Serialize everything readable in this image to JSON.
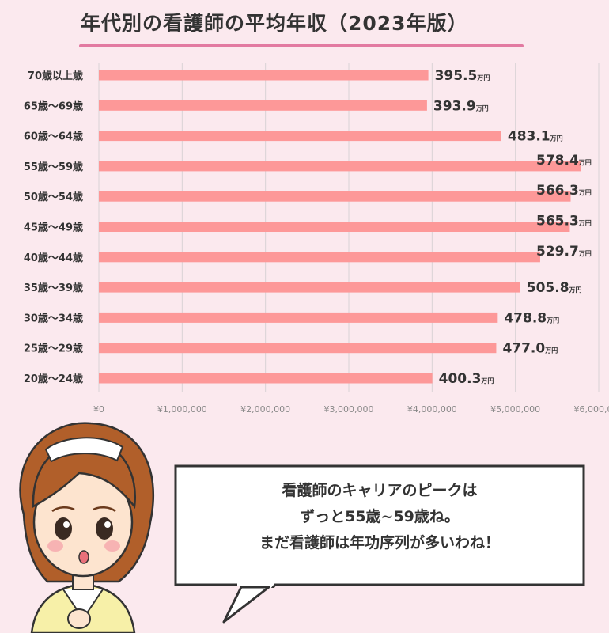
{
  "title": "年代別の看護師の平均年収（2023年版）",
  "chart_data": {
    "type": "bar",
    "orientation": "horizontal",
    "title": "年代別の看護師の平均年収（2023年版）",
    "categories": [
      "70歳以上歳",
      "65歳～69歳",
      "60歳～64歳",
      "55歳～59歳",
      "50歳～54歳",
      "45歳～49歳",
      "40歳～44歳",
      "35歳～39歳",
      "30歳～34歳",
      "25歳～29歳",
      "20歳～24歳"
    ],
    "values": [
      395.5,
      393.9,
      483.1,
      578.4,
      566.3,
      565.3,
      529.7,
      505.8,
      478.8,
      477.0,
      400.3
    ],
    "value_labels": [
      "395.5",
      "393.9",
      "483.1",
      "578.4",
      "566.3",
      "565.3",
      "529.7",
      "505.8",
      "478.8",
      "477.0",
      "400.3"
    ],
    "value_unit": "万円",
    "xlim": [
      0,
      6000000
    ],
    "x_tick_labels": [
      "¥0",
      "¥1,000,000",
      "¥2,000,000",
      "¥3,000,000",
      "¥4,000,000",
      "¥5,000,000",
      "¥6,000,000"
    ],
    "grid": "vertical",
    "bar_color": "#fd9898"
  },
  "speech": {
    "lines": [
      "看護師のキャリアのピークは",
      "ずっと55歳~59歳ね。",
      "まだ看護師は年功序列が多いわね！"
    ]
  },
  "colors": {
    "background": "#fbe9ee",
    "title_underline": "#e27aa1",
    "bar": "#fd9898"
  }
}
